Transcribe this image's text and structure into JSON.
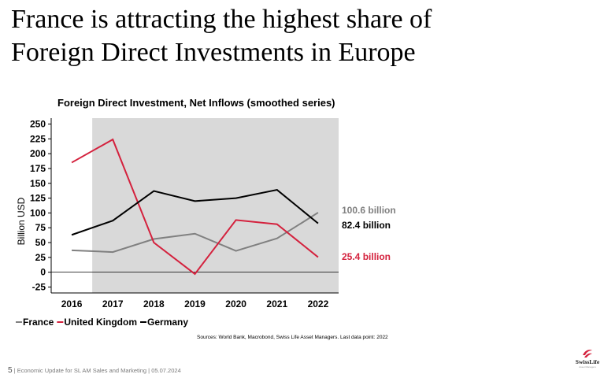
{
  "slide": {
    "title_line1": "France is attracting the highest share of",
    "title_line2": "Foreign Direct Investments in Europe"
  },
  "chart_data": {
    "type": "line",
    "title": "Foreign Direct Investment, Net Inflows (smoothed series)",
    "ylabel": "Billion USD",
    "xlabel": "",
    "categories": [
      "2016",
      "2017",
      "2018",
      "2019",
      "2020",
      "2021",
      "2022"
    ],
    "yticks": [
      250,
      225,
      200,
      175,
      150,
      125,
      100,
      75,
      50,
      25,
      0,
      -25
    ],
    "ylim": [
      -35,
      260
    ],
    "shaded_region": {
      "from": "2017",
      "to": "2022"
    },
    "series": [
      {
        "name": "France",
        "color": "#808080",
        "values": [
          37,
          34,
          56,
          65,
          36,
          57,
          100.6
        ]
      },
      {
        "name": "United Kingdom",
        "color": "#d4213d",
        "values": [
          185,
          224,
          50,
          -3,
          88,
          81,
          25.4
        ]
      },
      {
        "name": "Germany",
        "color": "#000000",
        "values": [
          63,
          87,
          137,
          120,
          125,
          139,
          82.4
        ]
      }
    ],
    "end_labels": [
      {
        "text": "100.6 billion",
        "color": "#808080",
        "value": 100.6
      },
      {
        "text": "82.4 billion",
        "color": "#000000",
        "value": 82.4
      },
      {
        "text": "25.4 billion",
        "color": "#d4213d",
        "value": 25.4
      }
    ],
    "legend": [
      {
        "text": "France",
        "color": "#808080"
      },
      {
        "text": "United Kingdom",
        "color": "#d4213d"
      },
      {
        "text": "Germany",
        "color": "#000000"
      }
    ]
  },
  "sources": "Sources: World Bank, Macrobond, Swiss Life Asset Managers. Last data point: 2022",
  "footer": {
    "page": "5",
    "text": "Economic Update for  SL AM Sales and Marketing | 05.07.2024"
  },
  "logo": {
    "brand": "SwissLife",
    "sub": "Asset Managers",
    "color": "#d4213d"
  }
}
